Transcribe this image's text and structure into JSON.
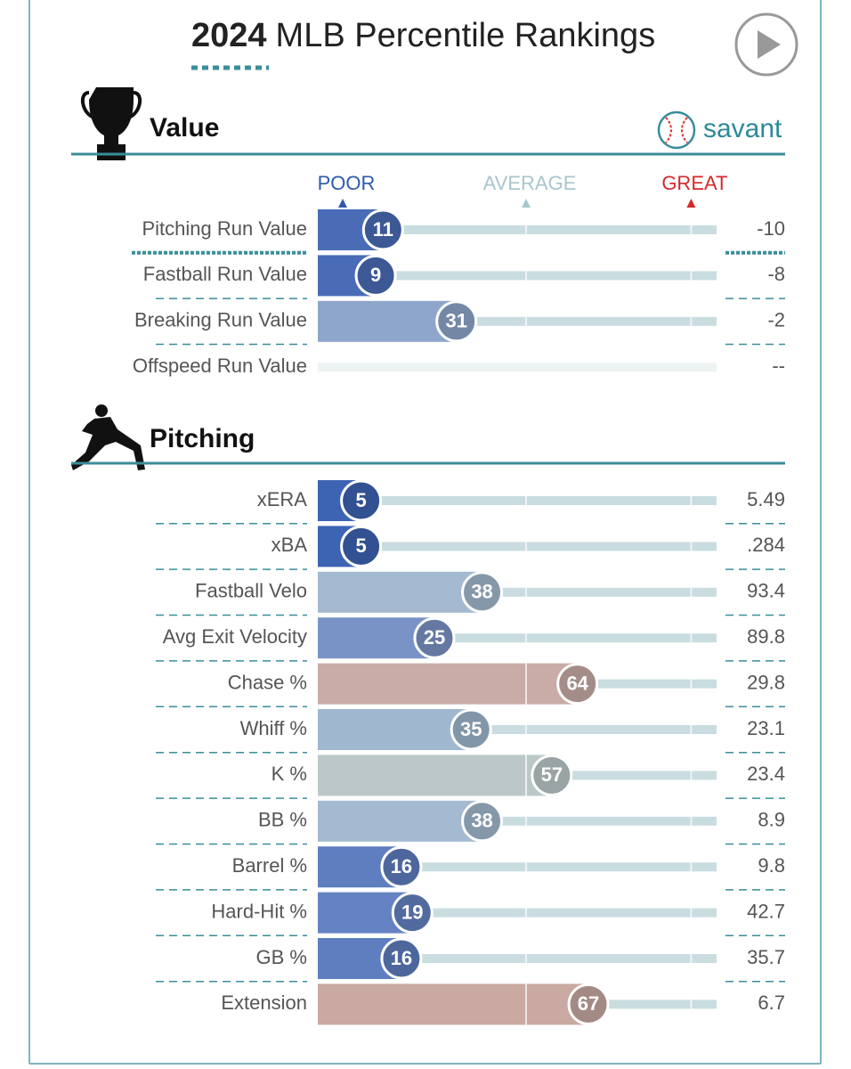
{
  "season": "2024",
  "title": "MLB Percentile Rankings",
  "brand": "savant",
  "chart_data": [
    {
      "type": "bar",
      "orientation": "horizontal",
      "title": "Value",
      "categories": [
        "Pitching Run Value",
        "Fastball Run Value",
        "Breaking Run Value",
        "Offspeed Run Value"
      ],
      "values": [
        11,
        9,
        31,
        null
      ],
      "stat_values": [
        "-10",
        "-8",
        "-2",
        "--"
      ],
      "colors": [
        "#4a6cb6",
        "#4a6cb6",
        "#8ea6cb",
        "#cfdde0"
      ],
      "xlim": [
        0,
        100
      ],
      "xticks": [
        {
          "value": 0,
          "label": "POOR"
        },
        {
          "value": 50,
          "label": "AVERAGE"
        },
        {
          "value": 95,
          "label": "GREAT"
        }
      ],
      "xtick_colors": [
        "#2f5aa8",
        "#a9c6cd",
        "#d42a2a"
      ],
      "tick_labels": true
    },
    {
      "type": "bar",
      "orientation": "horizontal",
      "title": "Pitching",
      "categories": [
        "xERA",
        "xBA",
        "Fastball Velo",
        "Avg Exit Velocity",
        "Chase %",
        "Whiff %",
        "K %",
        "BB %",
        "Barrel %",
        "Hard-Hit %",
        "GB %",
        "Extension"
      ],
      "values": [
        5,
        5,
        38,
        25,
        64,
        35,
        57,
        38,
        16,
        19,
        16,
        67
      ],
      "stat_values": [
        "5.49",
        ".284",
        "93.4",
        "89.8",
        "29.8",
        "23.1",
        "23.4",
        "8.9",
        "9.8",
        "42.7",
        "35.7",
        "6.7"
      ],
      "colors": [
        "#3d63b3",
        "#3d63b3",
        "#a3bad0",
        "#7a93c6",
        "#c9aca6",
        "#9fb7cf",
        "#bcc8c8",
        "#a3bad0",
        "#5e7ec0",
        "#6583c2",
        "#5e7ec0",
        "#c9a9a2"
      ],
      "xlim": [
        0,
        100
      ],
      "xticks": [
        {
          "value": 0,
          "label": "POOR"
        },
        {
          "value": 50,
          "label": "AVERAGE"
        },
        {
          "value": 95,
          "label": "GREAT"
        }
      ],
      "xtick_colors": [
        "#2f5aa8",
        "#a9c6cd",
        "#d42a2a"
      ],
      "tick_labels": false
    }
  ]
}
